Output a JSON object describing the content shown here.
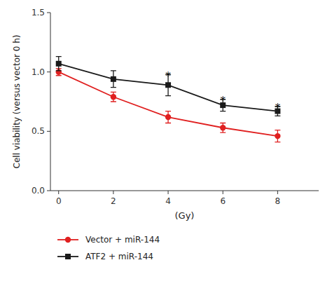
{
  "chart_data": {
    "type": "line",
    "x": [
      0,
      2,
      4,
      6,
      8
    ],
    "series": [
      {
        "name": "Vector + miR-144",
        "color": "#e02020",
        "marker": "circle",
        "values": [
          1.0,
          0.79,
          0.62,
          0.53,
          0.46
        ],
        "errors": [
          0.03,
          0.04,
          0.05,
          0.04,
          0.05
        ]
      },
      {
        "name": "ATF2 + miR-144",
        "color": "#1a1a1a",
        "marker": "square",
        "values": [
          1.07,
          0.94,
          0.89,
          0.72,
          0.67
        ],
        "errors": [
          0.06,
          0.07,
          0.09,
          0.05,
          0.04
        ]
      }
    ],
    "annotations": [
      {
        "x": 4,
        "y": 0.995,
        "text": "*"
      },
      {
        "x": 6,
        "y": 0.785,
        "text": "*"
      },
      {
        "x": 8,
        "y": 0.725,
        "text": "*"
      }
    ],
    "xlabel": "(Gy)",
    "ylabel": "Cell viability (versus vector 0 h)",
    "xlim": [
      -0.3,
      9.5
    ],
    "xticks": [
      0,
      2,
      4,
      6,
      8
    ],
    "ylim": [
      0.0,
      1.5
    ],
    "yticks": [
      {
        "value": 0.0,
        "label": "0.0"
      },
      0.5,
      {
        "value": 1.0,
        "label": "1.0"
      },
      1.5
    ],
    "grid": false,
    "legend": "bottom"
  }
}
